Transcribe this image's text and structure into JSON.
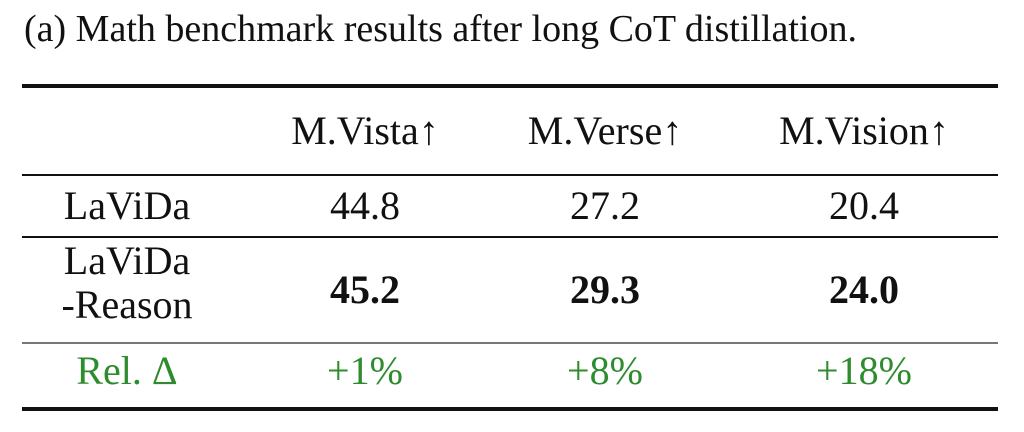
{
  "caption": "(a) Math benchmark results after long CoT distillation.",
  "table": {
    "headers": [
      "",
      "M.Vista↑",
      "M.Verse↑",
      "M.Vision↑"
    ],
    "rows": [
      {
        "label": "LaViDa",
        "values": [
          "44.8",
          "27.2",
          "20.4"
        ]
      },
      {
        "label_line1": "LaViDa",
        "label_line2": "-Reason",
        "values": [
          "45.2",
          "29.3",
          "24.0"
        ]
      },
      {
        "label": "Rel. Δ",
        "values": [
          "+1%",
          "+8%",
          "+18%"
        ]
      }
    ]
  },
  "colors": {
    "rel_delta": "#2e8b2e"
  }
}
